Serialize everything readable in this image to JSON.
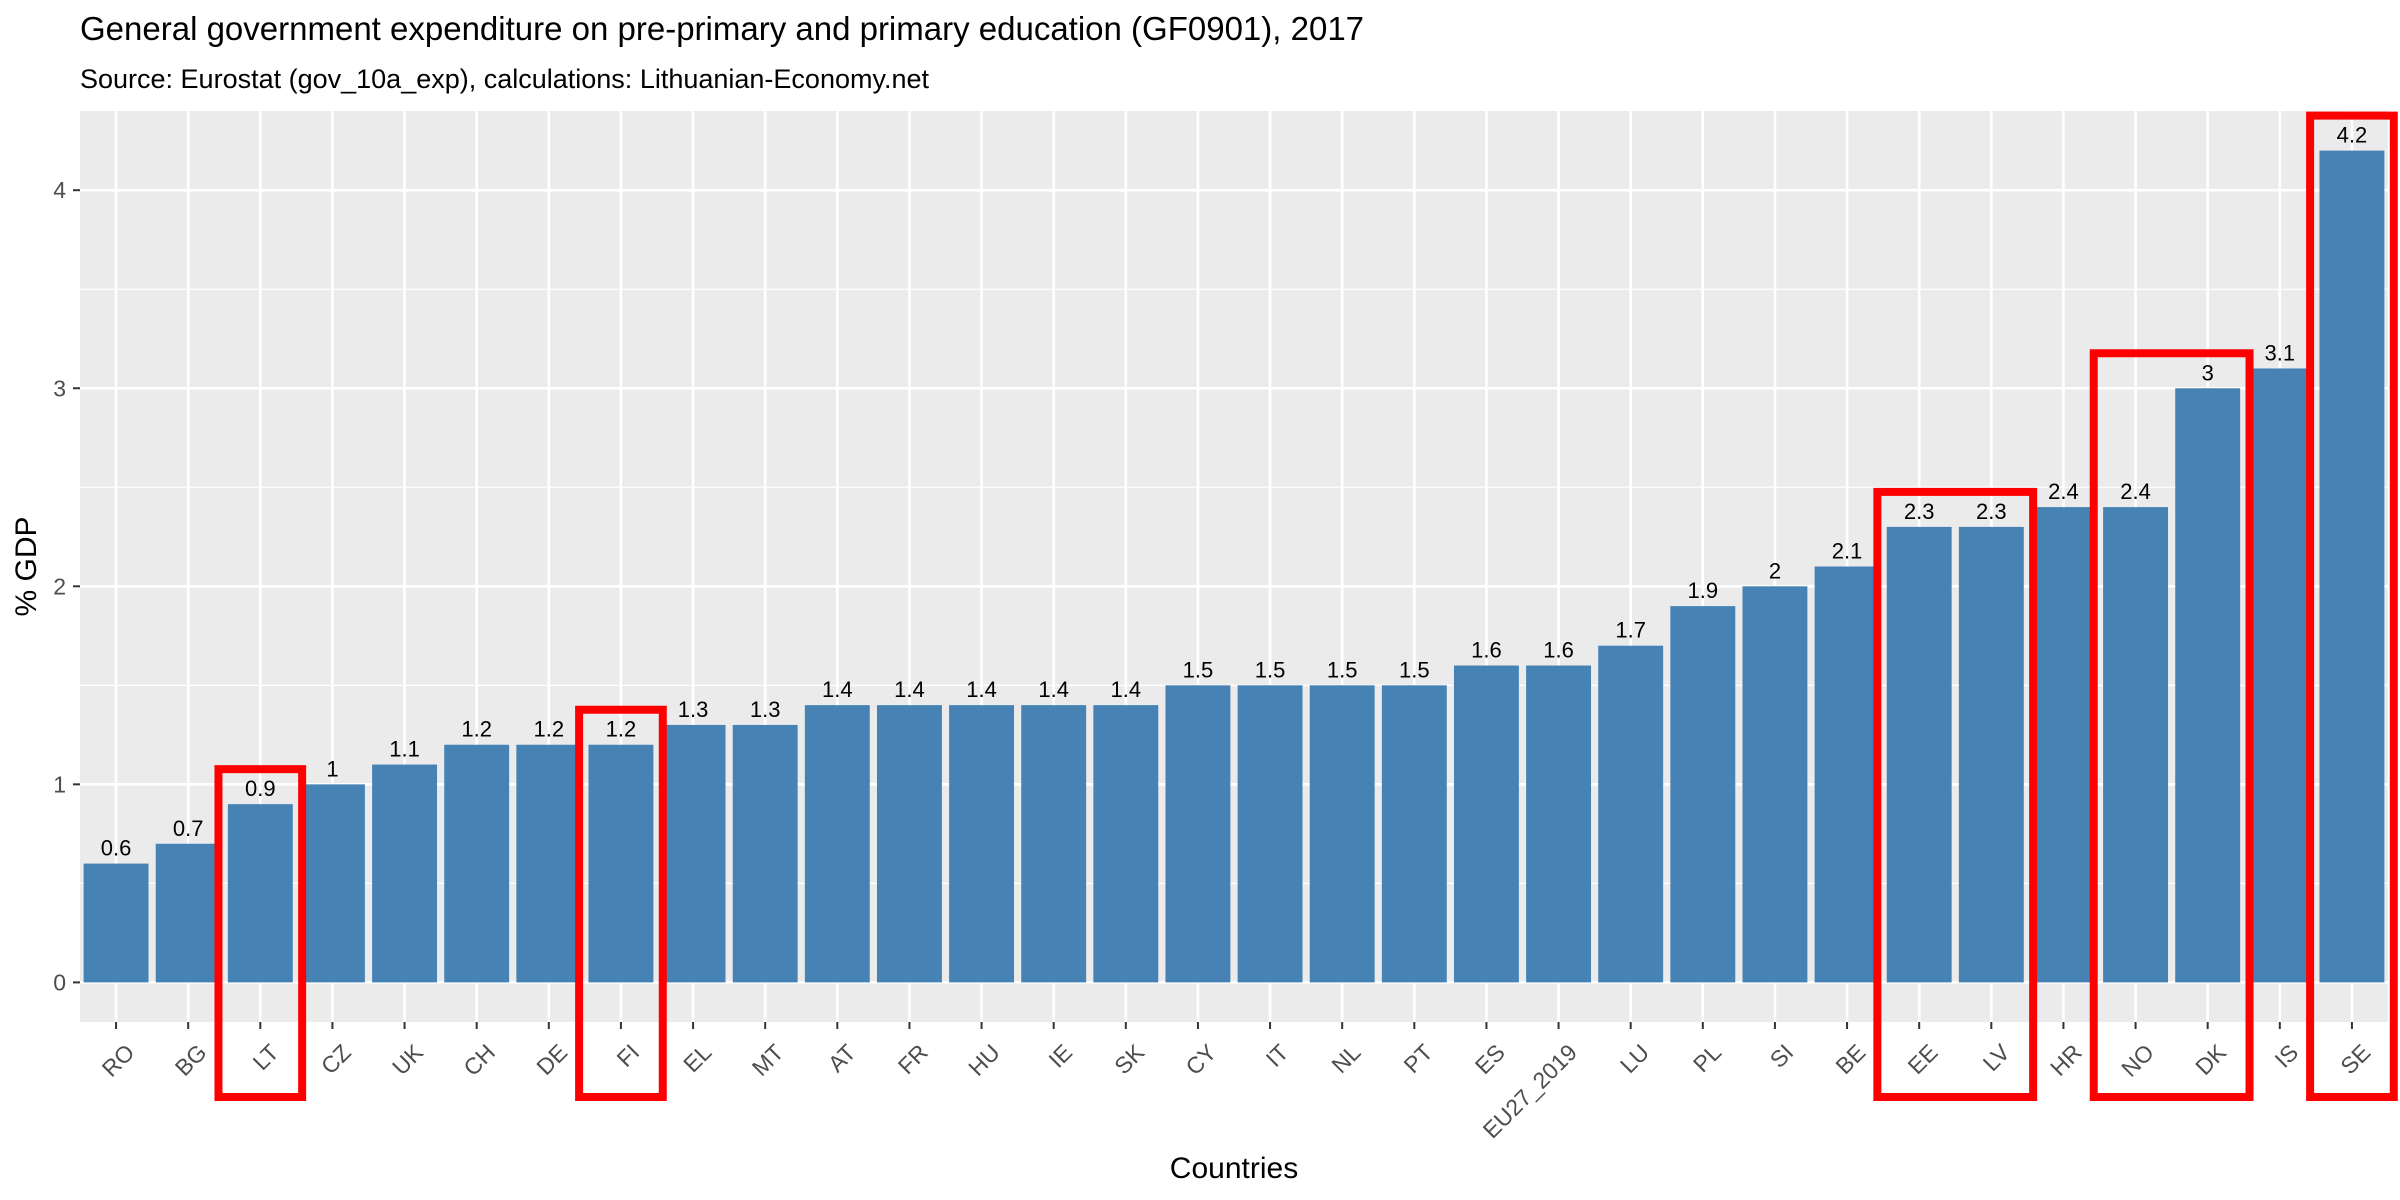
{
  "chart_data": {
    "type": "bar",
    "title": "General government expenditure on pre-primary and primary education (GF0901), 2017",
    "subtitle": "Source: Eurostat (gov_10a_exp), calculations: Lithuanian-Economy.net",
    "xlabel": "Countries",
    "ylabel": "% GDP",
    "ylim": [
      -0.2,
      4.4
    ],
    "yticks": [
      "0",
      "1",
      "2",
      "3",
      "4"
    ],
    "grid": true,
    "categories": [
      "RO",
      "BG",
      "LT",
      "CZ",
      "UK",
      "CH",
      "DE",
      "FI",
      "EL",
      "MT",
      "AT",
      "FR",
      "HU",
      "IE",
      "SK",
      "CY",
      "IT",
      "NL",
      "PT",
      "ES",
      "EU27_2019",
      "LU",
      "PL",
      "SI",
      "BE",
      "EE",
      "LV",
      "HR",
      "NO",
      "DK",
      "IS",
      "SE"
    ],
    "values": [
      0.6,
      0.7,
      0.9,
      1,
      1.1,
      1.2,
      1.2,
      1.2,
      1.3,
      1.3,
      1.4,
      1.4,
      1.4,
      1.4,
      1.4,
      1.5,
      1.5,
      1.5,
      1.5,
      1.6,
      1.6,
      1.7,
      1.9,
      2,
      2.1,
      2.3,
      2.3,
      2.4,
      2.4,
      3,
      3.1,
      4.2
    ],
    "value_labels": [
      "0.6",
      "0.7",
      "0.9",
      "1",
      "1.1",
      "1.2",
      "1.2",
      "1.2",
      "1.3",
      "1.3",
      "1.4",
      "1.4",
      "1.4",
      "1.4",
      "1.4",
      "1.5",
      "1.5",
      "1.5",
      "1.5",
      "1.6",
      "1.6",
      "1.7",
      "1.9",
      "2",
      "2.1",
      "2.3",
      "2.3",
      "2.4",
      "2.4",
      "3",
      "3.1",
      "4.2"
    ],
    "highlight_groups": [
      [
        "LT"
      ],
      [
        "FI"
      ],
      [
        "EE",
        "LV"
      ],
      [
        "NO",
        "DK"
      ],
      [
        "SE"
      ]
    ],
    "colors": {
      "bar": "#4682b4",
      "panel": "#ebebeb",
      "grid": "#ffffff",
      "highlight": "#ff0000"
    }
  }
}
